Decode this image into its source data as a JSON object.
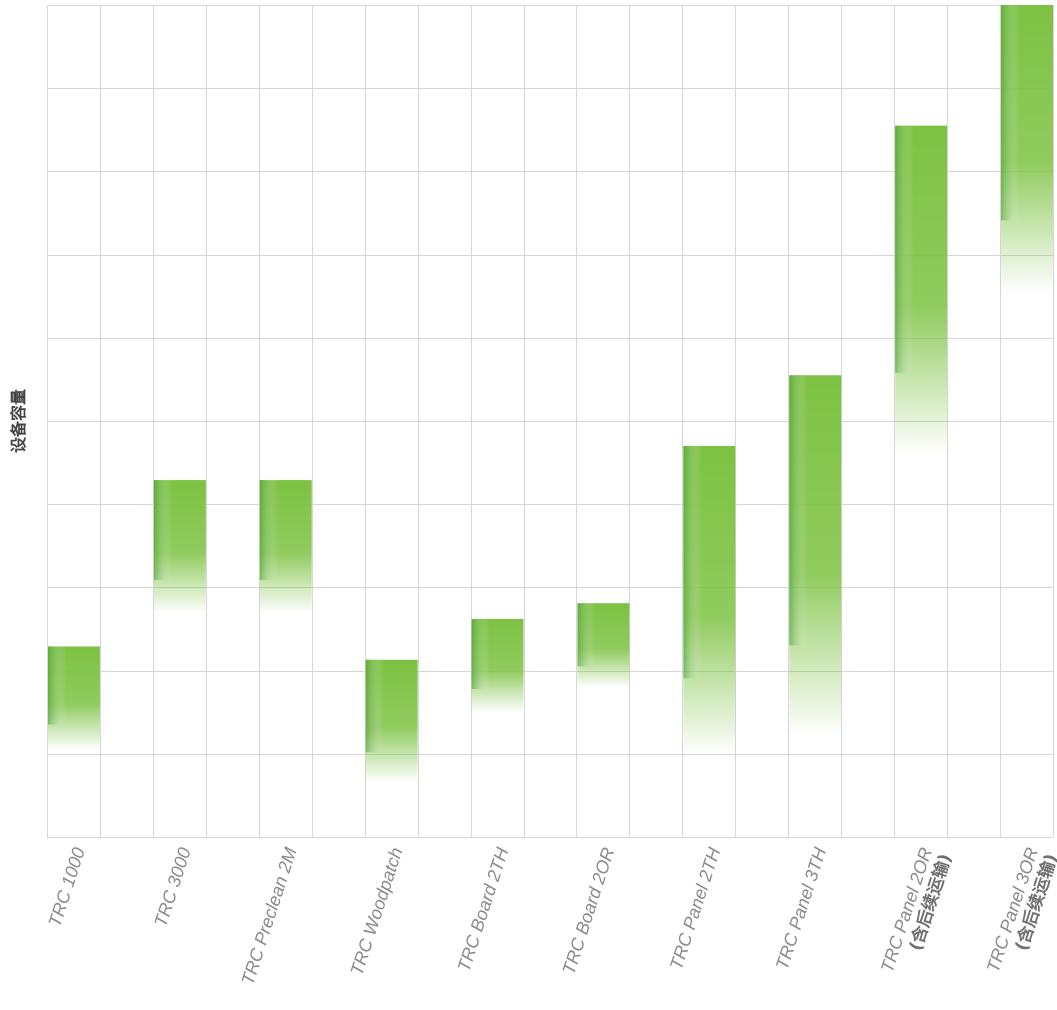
{
  "chart_data": {
    "type": "bar",
    "subtype": "floating-range",
    "ylabel": "设备容量",
    "xlabel": "",
    "title": "",
    "grid": true,
    "y_ticks_shown": false,
    "ylim": [
      0,
      10
    ],
    "bar_color": "#7dc242",
    "categories": [
      {
        "lines": [
          "TRC 1000"
        ]
      },
      {
        "lines": [
          "TRC 3000"
        ]
      },
      {
        "lines": [
          "TRC Preclean 2M"
        ]
      },
      {
        "lines": [
          "TRC Woodpatch"
        ]
      },
      {
        "lines": [
          "TRC Board 2TH"
        ]
      },
      {
        "lines": [
          "TRC Board 2OR"
        ]
      },
      {
        "lines": [
          "TRC Panel 2TH"
        ]
      },
      {
        "lines": [
          "TRC Panel 3TH"
        ]
      },
      {
        "lines": [
          "TRC Panel 2OR",
          "(含后续运输)"
        ]
      },
      {
        "lines": [
          "TRC Panel 3OR",
          "(含后续运输)"
        ]
      }
    ],
    "ranges": [
      [
        1.04,
        2.29
      ],
      [
        2.69,
        4.29
      ],
      [
        2.69,
        4.29
      ],
      [
        0.65,
        2.13
      ],
      [
        1.5,
        2.62
      ],
      [
        1.8,
        2.81
      ],
      [
        0.98,
        4.7
      ],
      [
        1.22,
        5.55
      ],
      [
        4.59,
        8.55
      ],
      [
        6.55,
        10.0
      ]
    ]
  }
}
